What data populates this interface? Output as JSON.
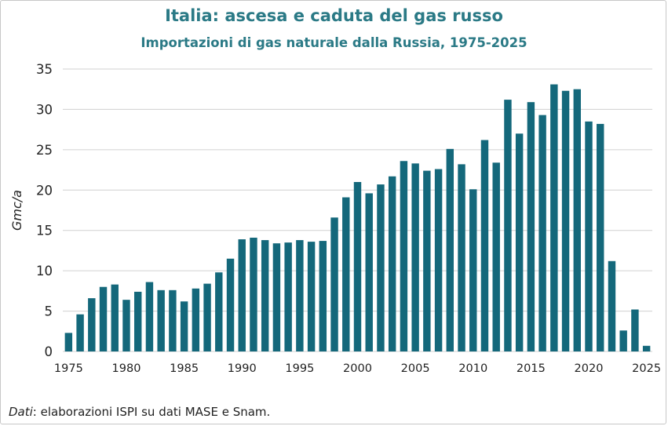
{
  "colors": {
    "bar": "#14687b",
    "title": "#2b7a86",
    "grid": "#d0d0d0",
    "text": "#222222"
  },
  "source": {
    "label": "Dati",
    "text": ": elaborazioni ISPI su dati MASE e Snam."
  },
  "chart_data": {
    "type": "bar",
    "title": "Italia: ascesa e caduta del gas russo",
    "subtitle": "Importazioni di gas naturale dalla Russia, 1975-2025",
    "xlabel": "",
    "ylabel": "Gmc/a",
    "ylim": [
      0,
      35
    ],
    "yticks": [
      "0",
      "5",
      "10",
      "15",
      "20",
      "25",
      "30",
      "35"
    ],
    "xticks": [
      "1975",
      "1980",
      "1985",
      "1990",
      "1995",
      "2000",
      "2005",
      "2010",
      "2015",
      "2020",
      "2025"
    ],
    "grid": true,
    "categories": [
      1975,
      1976,
      1977,
      1978,
      1979,
      1980,
      1981,
      1982,
      1983,
      1984,
      1985,
      1986,
      1987,
      1988,
      1989,
      1990,
      1991,
      1992,
      1993,
      1994,
      1995,
      1996,
      1997,
      1998,
      1999,
      2000,
      2001,
      2002,
      2003,
      2004,
      2005,
      2006,
      2007,
      2008,
      2009,
      2010,
      2011,
      2012,
      2013,
      2014,
      2015,
      2016,
      2017,
      2018,
      2019,
      2020,
      2021,
      2022,
      2023,
      2024,
      2025
    ],
    "values": [
      2.3,
      4.6,
      6.6,
      8.0,
      8.3,
      6.4,
      7.4,
      8.6,
      7.6,
      7.6,
      6.2,
      7.8,
      8.4,
      9.8,
      11.5,
      13.9,
      14.1,
      13.8,
      13.4,
      13.5,
      13.8,
      13.6,
      13.7,
      16.6,
      19.1,
      21.0,
      19.6,
      20.7,
      21.7,
      23.6,
      23.3,
      22.4,
      22.6,
      25.1,
      23.2,
      20.1,
      26.2,
      23.4,
      31.2,
      27.0,
      30.9,
      29.3,
      33.1,
      32.3,
      32.5,
      28.5,
      28.2,
      11.2,
      2.6,
      5.2,
      0.7
    ]
  }
}
